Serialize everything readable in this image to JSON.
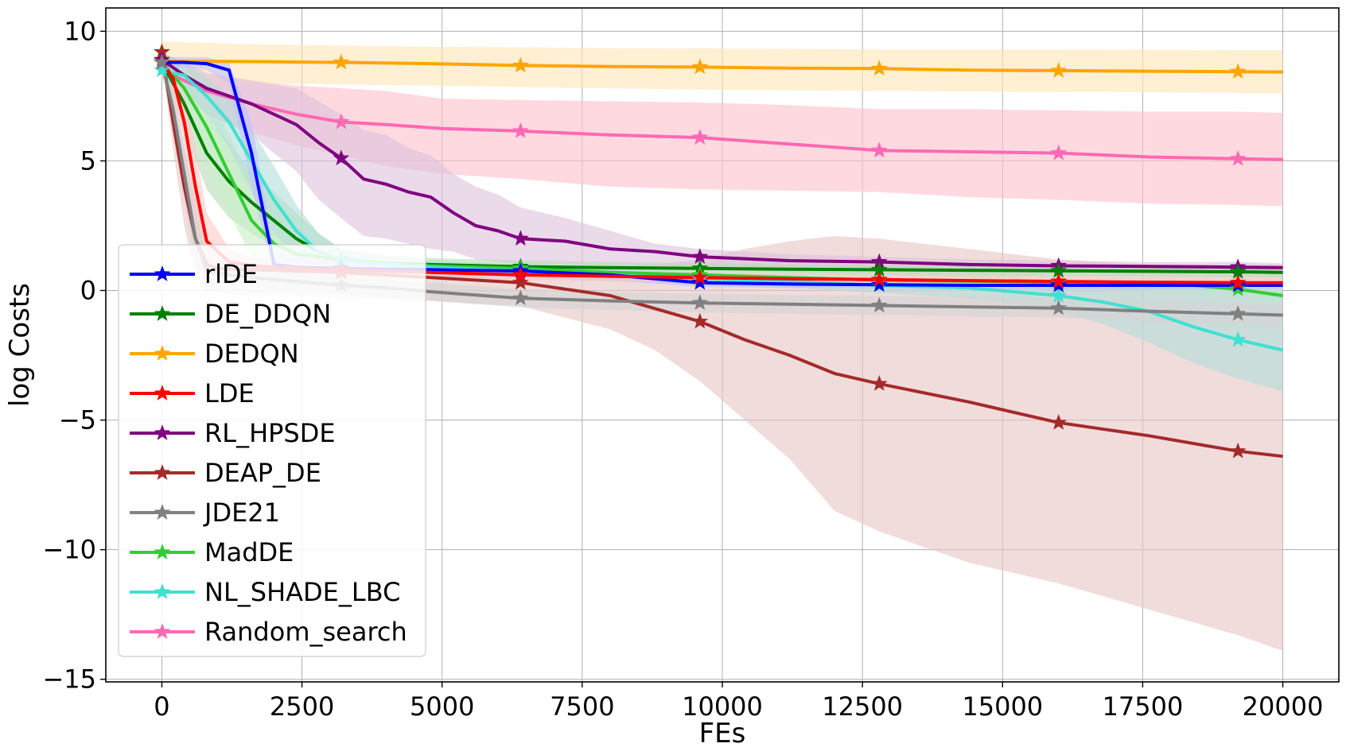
{
  "chart_data": {
    "type": "line",
    "title": "",
    "xlabel": "FEs",
    "ylabel": "log Costs",
    "xlim": [
      -1000,
      21000
    ],
    "ylim": [
      -15.1,
      10.9
    ],
    "xticks": [
      0,
      2500,
      5000,
      7500,
      10000,
      12500,
      15000,
      17500,
      20000
    ],
    "xtick_labels": [
      "0",
      "2500",
      "5000",
      "7500",
      "10000",
      "12500",
      "15000",
      "17500",
      "20000"
    ],
    "yticks": [
      10,
      5,
      0,
      -5,
      -10,
      -15
    ],
    "ytick_labels": [
      "10",
      "5",
      "0",
      "−5",
      "−10",
      "−15"
    ],
    "grid": true,
    "legend_position": "lower-left",
    "marker": "star",
    "marker_x": [
      0,
      3200,
      6400,
      9600,
      12800,
      16000,
      19200
    ],
    "series": [
      {
        "name": "Random_search",
        "color": "#ff69b4",
        "band_color": "#ffc0cb",
        "x": [
          0,
          200,
          800,
          1600,
          2400,
          3200,
          4000,
          5000,
          6400,
          8000,
          9600,
          11200,
          12800,
          14400,
          16000,
          17600,
          19200,
          20000
        ],
        "y": [
          8.8,
          8.3,
          7.7,
          7.2,
          6.8,
          6.5,
          6.4,
          6.25,
          6.15,
          6.0,
          5.9,
          5.65,
          5.4,
          5.35,
          5.3,
          5.15,
          5.08,
          5.05
        ],
        "upper": [
          9.3,
          8.9,
          8.3,
          8.1,
          7.9,
          7.8,
          7.7,
          7.4,
          7.35,
          7.3,
          7.25,
          7.15,
          7.0,
          7.0,
          6.95,
          6.9,
          6.9,
          6.85
        ],
        "lower": [
          8.3,
          7.6,
          6.8,
          6.1,
          5.6,
          5.2,
          4.8,
          4.5,
          4.3,
          4.0,
          3.9,
          3.85,
          3.8,
          3.6,
          3.5,
          3.35,
          3.3,
          3.25
        ]
      },
      {
        "name": "DEAP_DE",
        "color": "#a52a2a",
        "band_color": "#e8c4c4",
        "x": [
          0,
          200,
          400,
          600,
          800,
          1000,
          1600,
          2400,
          3200,
          4800,
          6400,
          8000,
          8800,
          9600,
          10400,
          11200,
          12000,
          12800,
          14400,
          16000,
          17600,
          19200,
          20000
        ],
        "y": [
          9.2,
          6.5,
          4.0,
          2.0,
          1.0,
          0.85,
          0.8,
          0.75,
          0.7,
          0.5,
          0.3,
          -0.2,
          -0.7,
          -1.2,
          -1.9,
          -2.5,
          -3.2,
          -3.6,
          -4.3,
          -5.1,
          -5.6,
          -6.2,
          -6.4
        ],
        "upper": [
          9.6,
          7.5,
          5.5,
          3.5,
          2.0,
          1.5,
          1.3,
          1.2,
          1.1,
          1.0,
          1.0,
          0.9,
          1.0,
          1.2,
          1.6,
          1.9,
          2.1,
          2.0,
          1.6,
          1.2,
          1.0,
          1.0,
          1.0
        ],
        "lower": [
          8.8,
          5.5,
          2.5,
          0.5,
          0.0,
          -0.1,
          -0.2,
          -0.2,
          -0.3,
          -0.4,
          -0.6,
          -1.5,
          -2.3,
          -3.5,
          -5.0,
          -6.5,
          -8.5,
          -9.3,
          -10.5,
          -11.3,
          -12.3,
          -13.3,
          -13.9
        ]
      },
      {
        "name": "DEDQN",
        "color": "#ffa500",
        "band_color": "#ffe4b5",
        "x": [
          0,
          1600,
          3200,
          4800,
          6400,
          8000,
          9600,
          11200,
          12800,
          14400,
          16000,
          17600,
          19200,
          20000
        ],
        "y": [
          8.85,
          8.83,
          8.8,
          8.75,
          8.68,
          8.64,
          8.62,
          8.58,
          8.56,
          8.5,
          8.48,
          8.46,
          8.44,
          8.43
        ],
        "upper": [
          9.6,
          9.5,
          9.45,
          9.4,
          9.38,
          9.35,
          9.34,
          9.32,
          9.3,
          9.3,
          9.3,
          9.28,
          9.27,
          9.27
        ],
        "lower": [
          8.1,
          8.0,
          7.95,
          7.9,
          7.85,
          7.8,
          7.75,
          7.72,
          7.7,
          7.68,
          7.66,
          7.65,
          7.63,
          7.62
        ]
      },
      {
        "name": "RL_HPSDE",
        "color": "#800080",
        "band_color": "#dcc1dc",
        "x": [
          0,
          400,
          800,
          1600,
          2400,
          2800,
          3200,
          3600,
          4000,
          4400,
          4800,
          5200,
          5600,
          6000,
          6400,
          7200,
          8000,
          8800,
          9600,
          11200,
          12800,
          14400,
          16000,
          17600,
          19200,
          20000
        ],
        "y": [
          8.9,
          8.3,
          7.8,
          7.2,
          6.4,
          5.7,
          5.1,
          4.3,
          4.1,
          3.8,
          3.6,
          3.0,
          2.5,
          2.3,
          2.0,
          1.9,
          1.6,
          1.5,
          1.3,
          1.15,
          1.1,
          1.0,
          0.95,
          0.93,
          0.9,
          0.88
        ],
        "upper": [
          9.2,
          8.8,
          8.4,
          8.1,
          7.8,
          7.3,
          6.8,
          6.2,
          6.0,
          5.5,
          5.2,
          4.5,
          4.0,
          3.7,
          3.2,
          2.8,
          2.3,
          1.8,
          1.6,
          1.4,
          1.3,
          1.2,
          1.15,
          1.1,
          1.1,
          1.05
        ],
        "lower": [
          8.6,
          7.6,
          6.8,
          6.0,
          4.6,
          3.5,
          2.8,
          2.1,
          2.0,
          1.8,
          1.6,
          1.5,
          1.2,
          1.1,
          1.0,
          1.0,
          0.95,
          0.9,
          0.85,
          0.8,
          0.75,
          0.72,
          0.7,
          0.68,
          0.66,
          0.65
        ]
      },
      {
        "name": "DE_DDQN",
        "color": "#008000",
        "band_color": "#b5dcb5",
        "x": [
          0,
          400,
          800,
          1200,
          1600,
          2000,
          2400,
          2800,
          3200,
          4000,
          4800,
          6400,
          8000,
          9600,
          11200,
          12800,
          14400,
          16000,
          17600,
          19200,
          20000
        ],
        "y": [
          8.8,
          7.2,
          5.3,
          4.2,
          3.4,
          2.7,
          2.0,
          1.5,
          1.2,
          1.05,
          1.0,
          0.92,
          0.88,
          0.85,
          0.82,
          0.8,
          0.78,
          0.76,
          0.74,
          0.72,
          0.7
        ],
        "upper": [
          9.1,
          8.2,
          6.8,
          5.7,
          4.6,
          3.8,
          3.0,
          2.2,
          1.6,
          1.35,
          1.25,
          1.15,
          1.1,
          1.05,
          1.0,
          0.98,
          0.96,
          0.95,
          0.93,
          0.9,
          0.88
        ],
        "lower": [
          8.5,
          6.2,
          3.9,
          2.8,
          2.2,
          1.7,
          1.2,
          0.9,
          0.8,
          0.75,
          0.7,
          0.65,
          0.62,
          0.6,
          0.58,
          0.56,
          0.55,
          0.54,
          0.52,
          0.5,
          0.5
        ]
      },
      {
        "name": "MadDE",
        "color": "#32cd32",
        "band_color": "#c8f0c8",
        "x": [
          0,
          400,
          800,
          1200,
          1600,
          2000,
          2400,
          2800,
          3200,
          4000,
          4800,
          6400,
          8000,
          9600,
          11200,
          12800,
          14400,
          16000,
          17600,
          18400,
          19200,
          20000
        ],
        "y": [
          8.8,
          7.8,
          6.3,
          4.5,
          2.7,
          1.8,
          1.4,
          1.3,
          1.2,
          1.05,
          0.95,
          0.85,
          0.7,
          0.6,
          0.5,
          0.4,
          0.36,
          0.32,
          0.25,
          0.2,
          0.05,
          -0.2
        ],
        "upper": [
          9.1,
          8.6,
          7.6,
          6.0,
          4.2,
          2.9,
          2.1,
          1.7,
          1.5,
          1.3,
          1.2,
          1.05,
          0.9,
          0.8,
          0.7,
          0.6,
          0.55,
          0.5,
          0.45,
          0.4,
          0.3,
          0.15
        ],
        "lower": [
          8.5,
          7.0,
          5.0,
          3.0,
          1.3,
          0.9,
          0.8,
          0.8,
          0.8,
          0.75,
          0.7,
          0.6,
          0.5,
          0.4,
          0.3,
          0.2,
          0.15,
          0.1,
          0.0,
          -0.1,
          -0.3,
          -0.55
        ]
      },
      {
        "name": "NL_SHADE_LBC",
        "color": "#40e0d0",
        "band_color": "#b3ddd8",
        "x": [
          0,
          400,
          800,
          1200,
          1600,
          2000,
          2400,
          2800,
          3200,
          4000,
          4800,
          6400,
          8000,
          9600,
          11200,
          12800,
          14400,
          16000,
          16800,
          17600,
          18400,
          19200,
          20000
        ],
        "y": [
          8.5,
          8.3,
          7.5,
          6.5,
          5.0,
          3.5,
          2.3,
          1.5,
          1.2,
          1.0,
          0.9,
          0.75,
          0.6,
          0.45,
          0.35,
          0.2,
          0.1,
          -0.2,
          -0.45,
          -0.8,
          -1.4,
          -1.9,
          -2.3
        ],
        "upper": [
          8.8,
          8.8,
          8.2,
          7.5,
          6.2,
          4.8,
          3.3,
          2.2,
          1.6,
          1.3,
          1.15,
          1.0,
          0.85,
          0.7,
          0.6,
          0.5,
          0.45,
          0.4,
          0.35,
          0.3,
          0.2,
          0.1,
          0.0
        ],
        "lower": [
          8.2,
          7.8,
          6.8,
          5.5,
          3.8,
          2.2,
          1.3,
          0.9,
          0.8,
          0.7,
          0.6,
          0.5,
          0.35,
          0.2,
          0.1,
          -0.1,
          -0.3,
          -0.8,
          -1.3,
          -2.0,
          -2.8,
          -3.4,
          -3.9
        ]
      },
      {
        "name": "rlDE",
        "color": "#0000ff",
        "band_color": "#c0c0ff",
        "x": [
          0,
          400,
          800,
          1200,
          1600,
          2000,
          2400,
          3200,
          4800,
          6400,
          8000,
          9600,
          11200,
          12800,
          14400,
          16000,
          17600,
          19200,
          20000
        ],
        "y": [
          8.8,
          8.8,
          8.75,
          8.5,
          5.3,
          1.0,
          0.9,
          0.85,
          0.8,
          0.75,
          0.6,
          0.3,
          0.25,
          0.22,
          0.2,
          0.2,
          0.2,
          0.2,
          0.2
        ],
        "upper": [
          9.0,
          9.0,
          9.0,
          8.8,
          6.5,
          1.6,
          1.3,
          1.1,
          1.0,
          0.9,
          0.8,
          0.5,
          0.45,
          0.4,
          0.38,
          0.36,
          0.35,
          0.35,
          0.35
        ],
        "lower": [
          8.6,
          8.6,
          8.5,
          8.0,
          4.0,
          0.6,
          0.6,
          0.6,
          0.55,
          0.5,
          0.4,
          0.15,
          0.1,
          0.08,
          0.06,
          0.05,
          0.05,
          0.05,
          0.05
        ]
      },
      {
        "name": "LDE",
        "color": "#ff0000",
        "band_color": "#ffc8c8",
        "x": [
          0,
          200,
          400,
          600,
          800,
          1200,
          1600,
          2400,
          3200,
          4800,
          6400,
          8000,
          9600,
          11200,
          12800,
          14400,
          16000,
          17600,
          19200,
          20000
        ],
        "y": [
          8.8,
          8.2,
          6.5,
          4.0,
          1.9,
          1.1,
          0.95,
          0.85,
          0.78,
          0.7,
          0.6,
          0.55,
          0.5,
          0.45,
          0.42,
          0.38,
          0.35,
          0.32,
          0.3,
          0.3
        ],
        "upper": [
          9.1,
          8.8,
          7.5,
          5.5,
          3.0,
          1.6,
          1.3,
          1.1,
          1.0,
          0.9,
          0.8,
          0.75,
          0.7,
          0.65,
          0.6,
          0.55,
          0.52,
          0.5,
          0.48,
          0.47
        ],
        "lower": [
          8.5,
          7.6,
          5.5,
          2.5,
          0.9,
          0.6,
          0.55,
          0.5,
          0.48,
          0.45,
          0.4,
          0.35,
          0.3,
          0.28,
          0.25,
          0.22,
          0.2,
          0.18,
          0.15,
          0.15
        ]
      },
      {
        "name": "JDE21",
        "color": "#808080",
        "band_color": "#d3d3d3",
        "x": [
          0,
          200,
          400,
          600,
          800,
          1200,
          1600,
          2400,
          3200,
          4000,
          4800,
          6400,
          8000,
          9600,
          11200,
          12800,
          14400,
          16000,
          17600,
          19200,
          20000
        ],
        "y": [
          8.8,
          7.0,
          4.5,
          2.0,
          0.75,
          0.6,
          0.5,
          0.35,
          0.2,
          0.1,
          -0.05,
          -0.3,
          -0.4,
          -0.48,
          -0.53,
          -0.58,
          -0.63,
          -0.68,
          -0.8,
          -0.9,
          -0.95
        ],
        "upper": [
          9.1,
          7.8,
          5.5,
          3.0,
          1.3,
          1.0,
          0.9,
          0.7,
          0.55,
          0.45,
          0.3,
          0.05,
          -0.05,
          -0.12,
          -0.17,
          -0.2,
          -0.25,
          -0.3,
          -0.4,
          -0.5,
          -0.55
        ],
        "lower": [
          8.5,
          6.2,
          3.5,
          1.0,
          0.2,
          0.2,
          0.1,
          0.0,
          -0.15,
          -0.25,
          -0.4,
          -0.65,
          -0.75,
          -0.85,
          -0.9,
          -0.95,
          -1.0,
          -1.05,
          -1.2,
          -1.3,
          -1.35
        ]
      }
    ],
    "legend_order": [
      "rlDE",
      "DE_DDQN",
      "DEDQN",
      "LDE",
      "RL_HPSDE",
      "DEAP_DE",
      "JDE21",
      "MadDE",
      "NL_SHADE_LBC",
      "Random_search"
    ]
  }
}
